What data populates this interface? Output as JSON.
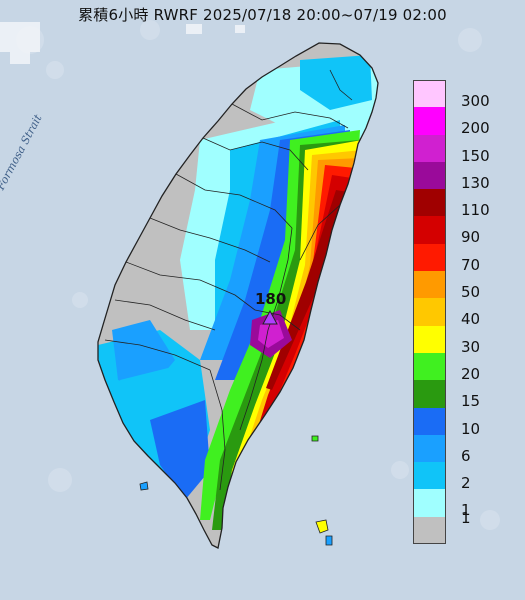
{
  "title": "累積6小時 RWRF 2025/07/18 20:00~07/19 02:00",
  "sea_label": "Formosa Strait",
  "peak": {
    "value": "180",
    "marker_icon": "triangle-marker-icon"
  },
  "legend": [
    {
      "label": "300",
      "color": "#ffc6ff"
    },
    {
      "label": "200",
      "color": "#ff00ff"
    },
    {
      "label": "150",
      "color": "#d020d0"
    },
    {
      "label": "130",
      "color": "#9a0a9a"
    },
    {
      "label": "110",
      "color": "#a00000"
    },
    {
      "label": "90",
      "color": "#d40000"
    },
    {
      "label": "70",
      "color": "#ff1a00"
    },
    {
      "label": "50",
      "color": "#ff9a00"
    },
    {
      "label": "40",
      "color": "#ffc800"
    },
    {
      "label": "30",
      "color": "#ffff00"
    },
    {
      "label": "20",
      "color": "#40f020"
    },
    {
      "label": "15",
      "color": "#2a9a10"
    },
    {
      "label": "10",
      "color": "#1a6cf5"
    },
    {
      "label": "6",
      "color": "#1aa0ff"
    },
    {
      "label": "2",
      "color": "#10c4f8"
    },
    {
      "label": "1",
      "color": "#a0ffff"
    },
    {
      "label": "",
      "color": "#c0c0c0"
    }
  ],
  "legend_bottom_label": "1"
}
